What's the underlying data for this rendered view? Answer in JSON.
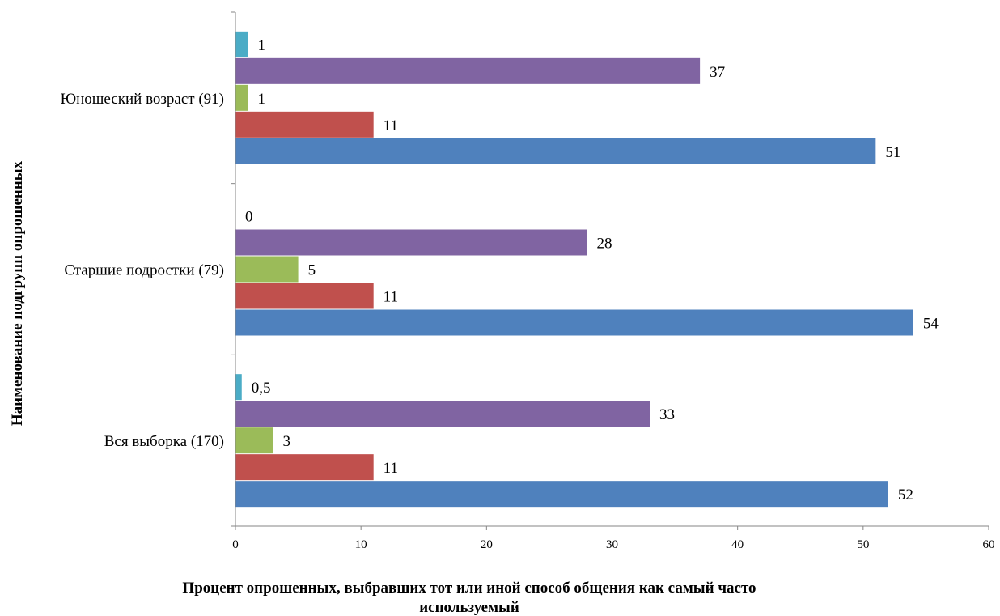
{
  "chart_data": {
    "type": "bar",
    "orientation": "horizontal",
    "categories": [
      "Вся выборка (170)",
      "Старшие подростки (79)",
      "Юношеский возраст (91)"
    ],
    "series": [
      {
        "color": "#4F81BD",
        "values": [
          52,
          54,
          51
        ],
        "labels": [
          "52",
          "54",
          "51"
        ]
      },
      {
        "color": "#C0504D",
        "values": [
          11,
          11,
          11
        ],
        "labels": [
          "11",
          "11",
          "11"
        ]
      },
      {
        "color": "#9BBB59",
        "values": [
          3,
          5,
          1
        ],
        "labels": [
          "3",
          "5",
          "1"
        ]
      },
      {
        "color": "#8064A2",
        "values": [
          33,
          28,
          37
        ],
        "labels": [
          "33",
          "28",
          "37"
        ]
      },
      {
        "color": "#4BACC6",
        "values": [
          0.5,
          0,
          1
        ],
        "labels": [
          "0,5",
          "0",
          "1"
        ]
      }
    ],
    "xlabel": "Процент опрошенных, выбравших тот или иной способ общения как самый часто используемый",
    "ylabel": "Наименование подгрупп опрошенных",
    "xlim": [
      0,
      60
    ],
    "xticks": [
      0,
      10,
      20,
      30,
      40,
      50,
      60
    ],
    "grid": false,
    "legend": "none"
  }
}
